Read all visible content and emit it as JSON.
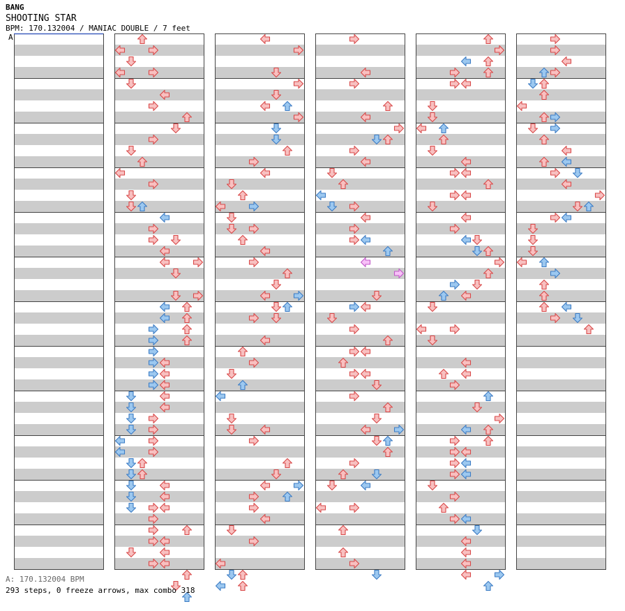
{
  "header": {
    "artist": "BANG",
    "title": "SHOOTING STAR",
    "info": "BPM: 170.132004 / MANIAC DOUBLE / 7 feet",
    "bpm_marker": "A"
  },
  "footer": {
    "bpm_text": "A: 170.132004 BPM",
    "stats_text": "293 steps, 0 freeze arrows, max combo 318"
  },
  "colors": {
    "red_fill": "#f8c0c0",
    "red_stroke": "#d84848",
    "blue_fill": "#9cc8f0",
    "blue_stroke": "#3c7cc4",
    "pink_fill": "#f8c0f8",
    "pink_stroke": "#c058c8",
    "stripe": "#cccccc",
    "border": "#444444"
  },
  "chart_data": {
    "type": "step-chart",
    "lanes": [
      "left",
      "down",
      "up",
      "right",
      "left",
      "down",
      "up",
      "right"
    ],
    "columns": 6,
    "measures_per_column": 12,
    "rows_per_measure": 4,
    "note_format": "[column, position in 16ths within column, lane index 0-7, color]",
    "notes": [
      [
        1,
        0,
        2,
        "r"
      ],
      [
        1,
        1,
        0,
        "r"
      ],
      [
        1,
        1,
        3,
        "r"
      ],
      [
        1,
        2,
        1,
        "r"
      ],
      [
        1,
        3,
        0,
        "r"
      ],
      [
        1,
        3,
        3,
        "r"
      ],
      [
        1,
        4,
        1,
        "r"
      ],
      [
        1,
        5,
        4,
        "r"
      ],
      [
        1,
        6,
        3,
        "r"
      ],
      [
        1,
        7,
        6,
        "r"
      ],
      [
        1,
        8,
        5,
        "r"
      ],
      [
        1,
        9,
        3,
        "r"
      ],
      [
        1,
        10,
        1,
        "r"
      ],
      [
        1,
        11,
        2,
        "r"
      ],
      [
        1,
        12,
        0,
        "r"
      ],
      [
        1,
        13,
        3,
        "r"
      ],
      [
        1,
        14,
        1,
        "r"
      ],
      [
        1,
        15,
        1,
        "r"
      ],
      [
        1,
        15,
        2,
        "b"
      ],
      [
        1,
        16,
        4,
        "b"
      ],
      [
        1,
        17,
        3,
        "r"
      ],
      [
        1,
        18,
        3,
        "r"
      ],
      [
        1,
        18,
        5,
        "r"
      ],
      [
        1,
        19,
        4,
        "r"
      ],
      [
        1,
        20,
        4,
        "r"
      ],
      [
        1,
        20,
        7,
        "r"
      ],
      [
        1,
        21,
        5,
        "r"
      ],
      [
        1,
        23,
        5,
        "r"
      ],
      [
        1,
        23,
        7,
        "r"
      ],
      [
        1,
        24,
        4,
        "b"
      ],
      [
        1,
        24,
        6,
        "r"
      ],
      [
        1,
        25,
        4,
        "b"
      ],
      [
        1,
        25,
        6,
        "r"
      ],
      [
        1,
        26,
        3,
        "b"
      ],
      [
        1,
        26,
        6,
        "r"
      ],
      [
        1,
        27,
        3,
        "b"
      ],
      [
        1,
        27,
        6,
        "r"
      ],
      [
        1,
        28,
        3,
        "b"
      ],
      [
        1,
        29,
        3,
        "b"
      ],
      [
        1,
        29,
        4,
        "r"
      ],
      [
        1,
        30,
        3,
        "b"
      ],
      [
        1,
        30,
        4,
        "r"
      ],
      [
        1,
        31,
        3,
        "b"
      ],
      [
        1,
        31,
        4,
        "r"
      ],
      [
        1,
        32,
        1,
        "b"
      ],
      [
        1,
        32,
        4,
        "r"
      ],
      [
        1,
        33,
        1,
        "b"
      ],
      [
        1,
        33,
        4,
        "r"
      ],
      [
        1,
        34,
        1,
        "b"
      ],
      [
        1,
        34,
        3,
        "r"
      ],
      [
        1,
        35,
        1,
        "b"
      ],
      [
        1,
        35,
        3,
        "r"
      ],
      [
        1,
        36,
        0,
        "b"
      ],
      [
        1,
        36,
        3,
        "r"
      ],
      [
        1,
        37,
        0,
        "b"
      ],
      [
        1,
        37,
        3,
        "r"
      ],
      [
        1,
        38,
        1,
        "b"
      ],
      [
        1,
        38,
        2,
        "r"
      ],
      [
        1,
        39,
        1,
        "b"
      ],
      [
        1,
        39,
        2,
        "r"
      ],
      [
        1,
        40,
        1,
        "b"
      ],
      [
        1,
        40,
        4,
        "r"
      ],
      [
        1,
        41,
        1,
        "b"
      ],
      [
        1,
        41,
        4,
        "r"
      ],
      [
        1,
        42,
        1,
        "b"
      ],
      [
        1,
        42,
        3,
        "r"
      ],
      [
        1,
        42,
        4,
        "r"
      ],
      [
        1,
        43,
        3,
        "r"
      ],
      [
        1,
        44,
        3,
        "r"
      ],
      [
        1,
        44,
        6,
        "r"
      ],
      [
        1,
        45,
        3,
        "r"
      ],
      [
        1,
        45,
        4,
        "r"
      ],
      [
        1,
        46,
        1,
        "r"
      ],
      [
        1,
        46,
        4,
        "r"
      ],
      [
        1,
        47,
        3,
        "r"
      ],
      [
        1,
        47,
        4,
        "r"
      ],
      [
        1,
        48,
        6,
        "r"
      ],
      [
        1,
        49,
        5,
        "r"
      ],
      [
        1,
        50,
        6,
        "b"
      ],
      [
        2,
        0,
        4,
        "r"
      ],
      [
        2,
        1,
        7,
        "r"
      ],
      [
        2,
        3,
        5,
        "r"
      ],
      [
        2,
        4,
        7,
        "r"
      ],
      [
        2,
        5,
        5,
        "r"
      ],
      [
        2,
        6,
        4,
        "r"
      ],
      [
        2,
        6,
        6,
        "b"
      ],
      [
        2,
        7,
        7,
        "r"
      ],
      [
        2,
        8,
        5,
        "b"
      ],
      [
        2,
        9,
        5,
        "b"
      ],
      [
        2,
        10,
        6,
        "r"
      ],
      [
        2,
        11,
        3,
        "r"
      ],
      [
        2,
        12,
        4,
        "r"
      ],
      [
        2,
        13,
        1,
        "r"
      ],
      [
        2,
        14,
        2,
        "r"
      ],
      [
        2,
        15,
        0,
        "r"
      ],
      [
        2,
        15,
        3,
        "b"
      ],
      [
        2,
        16,
        1,
        "r"
      ],
      [
        2,
        17,
        1,
        "r"
      ],
      [
        2,
        17,
        3,
        "r"
      ],
      [
        2,
        18,
        2,
        "r"
      ],
      [
        2,
        19,
        4,
        "r"
      ],
      [
        2,
        20,
        3,
        "r"
      ],
      [
        2,
        21,
        6,
        "r"
      ],
      [
        2,
        22,
        5,
        "r"
      ],
      [
        2,
        23,
        4,
        "r"
      ],
      [
        2,
        23,
        7,
        "b"
      ],
      [
        2,
        24,
        5,
        "r"
      ],
      [
        2,
        24,
        6,
        "b"
      ],
      [
        2,
        25,
        3,
        "r"
      ],
      [
        2,
        25,
        5,
        "r"
      ],
      [
        2,
        27,
        4,
        "r"
      ],
      [
        2,
        28,
        2,
        "r"
      ],
      [
        2,
        29,
        3,
        "r"
      ],
      [
        2,
        30,
        1,
        "r"
      ],
      [
        2,
        31,
        2,
        "b"
      ],
      [
        2,
        32,
        0,
        "b"
      ],
      [
        2,
        34,
        1,
        "r"
      ],
      [
        2,
        35,
        1,
        "r"
      ],
      [
        2,
        35,
        4,
        "r"
      ],
      [
        2,
        36,
        3,
        "r"
      ],
      [
        2,
        38,
        6,
        "r"
      ],
      [
        2,
        39,
        5,
        "r"
      ],
      [
        2,
        40,
        4,
        "r"
      ],
      [
        2,
        40,
        7,
        "b"
      ],
      [
        2,
        41,
        3,
        "r"
      ],
      [
        2,
        41,
        6,
        "b"
      ],
      [
        2,
        42,
        3,
        "r"
      ],
      [
        2,
        43,
        4,
        "r"
      ],
      [
        2,
        44,
        1,
        "r"
      ],
      [
        2,
        45,
        3,
        "r"
      ],
      [
        2,
        47,
        0,
        "r"
      ],
      [
        2,
        48,
        2,
        "r"
      ],
      [
        2,
        48,
        1,
        "b"
      ],
      [
        2,
        49,
        2,
        "r"
      ],
      [
        2,
        49,
        0,
        "b"
      ],
      [
        3,
        0,
        3,
        "r"
      ],
      [
        3,
        3,
        4,
        "r"
      ],
      [
        3,
        4,
        3,
        "r"
      ],
      [
        3,
        6,
        6,
        "r"
      ],
      [
        3,
        7,
        4,
        "r"
      ],
      [
        3,
        8,
        7,
        "r"
      ],
      [
        3,
        9,
        5,
        "b"
      ],
      [
        3,
        9,
        6,
        "r"
      ],
      [
        3,
        10,
        3,
        "r"
      ],
      [
        3,
        11,
        4,
        "r"
      ],
      [
        3,
        12,
        1,
        "r"
      ],
      [
        3,
        13,
        2,
        "r"
      ],
      [
        3,
        14,
        0,
        "b"
      ],
      [
        3,
        15,
        1,
        "b"
      ],
      [
        3,
        15,
        3,
        "r"
      ],
      [
        3,
        16,
        4,
        "r"
      ],
      [
        3,
        17,
        3,
        "r"
      ],
      [
        3,
        18,
        3,
        "r"
      ],
      [
        3,
        18,
        4,
        "b"
      ],
      [
        3,
        19,
        6,
        "b"
      ],
      [
        3,
        20,
        4,
        "p"
      ],
      [
        3,
        21,
        7,
        "p"
      ],
      [
        3,
        23,
        5,
        "r"
      ],
      [
        3,
        24,
        3,
        "b"
      ],
      [
        3,
        24,
        4,
        "r"
      ],
      [
        3,
        25,
        1,
        "r"
      ],
      [
        3,
        26,
        3,
        "r"
      ],
      [
        3,
        27,
        6,
        "r"
      ],
      [
        3,
        28,
        3,
        "r"
      ],
      [
        3,
        28,
        4,
        "r"
      ],
      [
        3,
        29,
        2,
        "r"
      ],
      [
        3,
        30,
        3,
        "r"
      ],
      [
        3,
        30,
        4,
        "r"
      ],
      [
        3,
        31,
        5,
        "r"
      ],
      [
        3,
        32,
        3,
        "r"
      ],
      [
        3,
        33,
        6,
        "r"
      ],
      [
        3,
        34,
        5,
        "r"
      ],
      [
        3,
        35,
        4,
        "r"
      ],
      [
        3,
        35,
        7,
        "b"
      ],
      [
        3,
        36,
        5,
        "r"
      ],
      [
        3,
        36,
        6,
        "b"
      ],
      [
        3,
        37,
        6,
        "r"
      ],
      [
        3,
        38,
        3,
        "r"
      ],
      [
        3,
        39,
        2,
        "r"
      ],
      [
        3,
        39,
        5,
        "b"
      ],
      [
        3,
        40,
        1,
        "r"
      ],
      [
        3,
        40,
        4,
        "b"
      ],
      [
        3,
        42,
        0,
        "r"
      ],
      [
        3,
        42,
        3,
        "r"
      ],
      [
        3,
        44,
        2,
        "r"
      ],
      [
        3,
        46,
        2,
        "r"
      ],
      [
        3,
        47,
        3,
        "r"
      ],
      [
        3,
        48,
        5,
        "b"
      ],
      [
        4,
        0,
        6,
        "r"
      ],
      [
        4,
        1,
        7,
        "r"
      ],
      [
        4,
        2,
        4,
        "b"
      ],
      [
        4,
        2,
        6,
        "r"
      ],
      [
        4,
        3,
        3,
        "r"
      ],
      [
        4,
        3,
        6,
        "r"
      ],
      [
        4,
        4,
        3,
        "r"
      ],
      [
        4,
        4,
        4,
        "r"
      ],
      [
        4,
        6,
        1,
        "r"
      ],
      [
        4,
        7,
        1,
        "r"
      ],
      [
        4,
        8,
        0,
        "r"
      ],
      [
        4,
        8,
        2,
        "b"
      ],
      [
        4,
        9,
        2,
        "r"
      ],
      [
        4,
        10,
        1,
        "r"
      ],
      [
        4,
        11,
        4,
        "r"
      ],
      [
        4,
        12,
        3,
        "r"
      ],
      [
        4,
        12,
        4,
        "r"
      ],
      [
        4,
        13,
        6,
        "r"
      ],
      [
        4,
        14,
        3,
        "r"
      ],
      [
        4,
        14,
        4,
        "r"
      ],
      [
        4,
        15,
        1,
        "r"
      ],
      [
        4,
        16,
        4,
        "r"
      ],
      [
        4,
        17,
        3,
        "r"
      ],
      [
        4,
        18,
        4,
        "b"
      ],
      [
        4,
        18,
        5,
        "r"
      ],
      [
        4,
        19,
        5,
        "b"
      ],
      [
        4,
        19,
        6,
        "r"
      ],
      [
        4,
        20,
        7,
        "r"
      ],
      [
        4,
        21,
        6,
        "r"
      ],
      [
        4,
        22,
        3,
        "b"
      ],
      [
        4,
        22,
        5,
        "r"
      ],
      [
        4,
        23,
        2,
        "b"
      ],
      [
        4,
        23,
        4,
        "r"
      ],
      [
        4,
        24,
        1,
        "r"
      ],
      [
        4,
        26,
        0,
        "r"
      ],
      [
        4,
        26,
        3,
        "r"
      ],
      [
        4,
        27,
        1,
        "r"
      ],
      [
        4,
        29,
        4,
        "r"
      ],
      [
        4,
        30,
        2,
        "r"
      ],
      [
        4,
        30,
        4,
        "r"
      ],
      [
        4,
        31,
        3,
        "r"
      ],
      [
        4,
        32,
        6,
        "b"
      ],
      [
        4,
        33,
        5,
        "r"
      ],
      [
        4,
        34,
        7,
        "r"
      ],
      [
        4,
        35,
        4,
        "b"
      ],
      [
        4,
        35,
        6,
        "r"
      ],
      [
        4,
        36,
        3,
        "r"
      ],
      [
        4,
        36,
        6,
        "r"
      ],
      [
        4,
        37,
        3,
        "r"
      ],
      [
        4,
        37,
        4,
        "r"
      ],
      [
        4,
        38,
        3,
        "r"
      ],
      [
        4,
        38,
        4,
        "b"
      ],
      [
        4,
        39,
        3,
        "r"
      ],
      [
        4,
        39,
        4,
        "b"
      ],
      [
        4,
        40,
        1,
        "r"
      ],
      [
        4,
        41,
        3,
        "r"
      ],
      [
        4,
        42,
        2,
        "r"
      ],
      [
        4,
        43,
        3,
        "r"
      ],
      [
        4,
        43,
        4,
        "b"
      ],
      [
        4,
        44,
        5,
        "b"
      ],
      [
        4,
        45,
        4,
        "r"
      ],
      [
        4,
        46,
        4,
        "r"
      ],
      [
        4,
        47,
        4,
        "r"
      ],
      [
        4,
        48,
        4,
        "r"
      ],
      [
        4,
        48,
        7,
        "b"
      ],
      [
        4,
        49,
        6,
        "b"
      ],
      [
        5,
        0,
        3,
        "r"
      ],
      [
        5,
        1,
        3,
        "r"
      ],
      [
        5,
        2,
        4,
        "r"
      ],
      [
        5,
        3,
        2,
        "b"
      ],
      [
        5,
        3,
        3,
        "r"
      ],
      [
        5,
        4,
        1,
        "b"
      ],
      [
        5,
        4,
        2,
        "r"
      ],
      [
        5,
        5,
        2,
        "r"
      ],
      [
        5,
        6,
        0,
        "r"
      ],
      [
        5,
        7,
        2,
        "r"
      ],
      [
        5,
        7,
        3,
        "b"
      ],
      [
        5,
        8,
        1,
        "r"
      ],
      [
        5,
        8,
        3,
        "b"
      ],
      [
        5,
        9,
        2,
        "r"
      ],
      [
        5,
        10,
        4,
        "r"
      ],
      [
        5,
        11,
        2,
        "r"
      ],
      [
        5,
        11,
        4,
        "b"
      ],
      [
        5,
        12,
        3,
        "r"
      ],
      [
        5,
        12,
        5,
        "b"
      ],
      [
        5,
        13,
        4,
        "r"
      ],
      [
        5,
        14,
        7,
        "r"
      ],
      [
        5,
        15,
        5,
        "r"
      ],
      [
        5,
        15,
        6,
        "b"
      ],
      [
        5,
        16,
        3,
        "r"
      ],
      [
        5,
        16,
        4,
        "b"
      ],
      [
        5,
        17,
        1,
        "r"
      ],
      [
        5,
        18,
        1,
        "r"
      ],
      [
        5,
        19,
        1,
        "r"
      ],
      [
        5,
        20,
        0,
        "r"
      ],
      [
        5,
        20,
        2,
        "b"
      ],
      [
        5,
        21,
        3,
        "b"
      ],
      [
        5,
        22,
        2,
        "r"
      ],
      [
        5,
        23,
        2,
        "r"
      ],
      [
        5,
        24,
        2,
        "r"
      ],
      [
        5,
        24,
        4,
        "b"
      ],
      [
        5,
        25,
        3,
        "r"
      ],
      [
        5,
        25,
        5,
        "b"
      ],
      [
        5,
        26,
        6,
        "r"
      ]
    ]
  }
}
